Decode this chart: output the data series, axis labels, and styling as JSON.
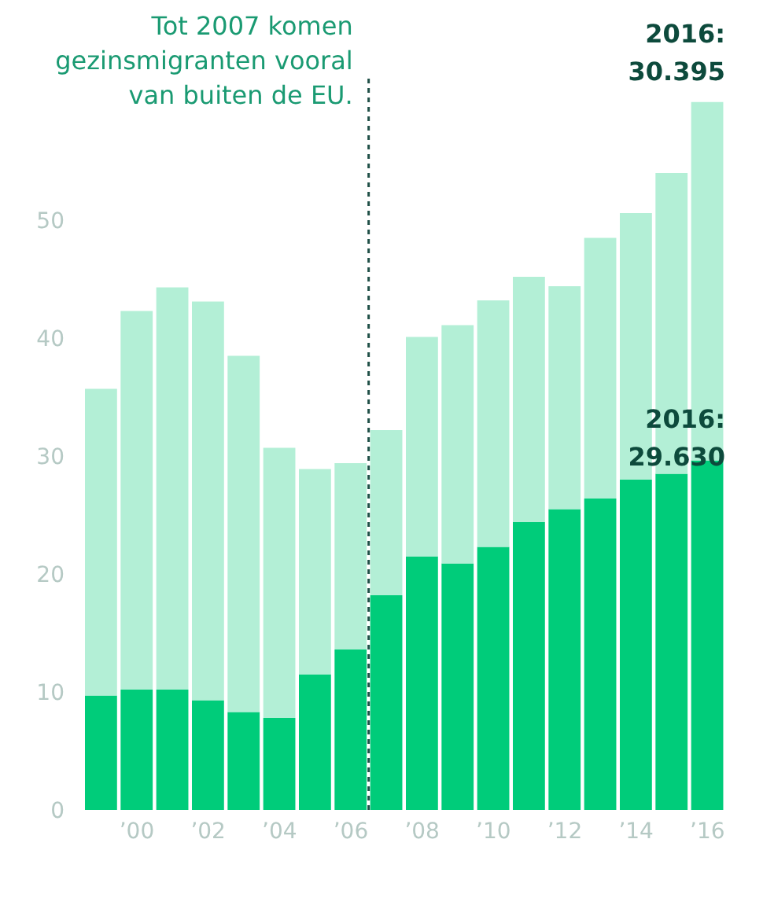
{
  "chart_data": {
    "type": "bar",
    "stacked": true,
    "x": [
      1999,
      2000,
      2001,
      2002,
      2003,
      2004,
      2005,
      2006,
      2007,
      2008,
      2009,
      2010,
      2011,
      2012,
      2013,
      2014,
      2015,
      2016
    ],
    "series": [
      {
        "color": "#00cc7a",
        "values": [
          9.7,
          10.2,
          10.2,
          9.3,
          8.3,
          7.8,
          11.5,
          13.6,
          18.2,
          21.5,
          20.9,
          22.3,
          24.4,
          25.5,
          26.4,
          28.0,
          28.5,
          29.63
        ]
      },
      {
        "color": "#b3efd6",
        "values": [
          26.0,
          32.1,
          34.1,
          33.8,
          30.2,
          22.9,
          17.4,
          15.8,
          14.0,
          18.6,
          20.2,
          20.9,
          20.8,
          18.9,
          22.1,
          22.6,
          25.5,
          30.395
        ]
      }
    ],
    "xlim": [
      1998.5,
      2016.5
    ],
    "xticks": [
      {
        "value": 2000,
        "label": "’00"
      },
      {
        "value": 2002,
        "label": "’02"
      },
      {
        "value": 2004,
        "label": "’04"
      },
      {
        "value": 2006,
        "label": "’06"
      },
      {
        "value": 2008,
        "label": "’08"
      },
      {
        "value": 2010,
        "label": "’10"
      },
      {
        "value": 2012,
        "label": "’12"
      },
      {
        "value": 2014,
        "label": "’14"
      },
      {
        "value": 2016,
        "label": "’16"
      }
    ],
    "ylim": [
      0,
      62
    ],
    "yticks": [
      0,
      10,
      20,
      30,
      40,
      50
    ],
    "grid": false,
    "legend": false,
    "ref_lines": [
      {
        "axis": "x",
        "value": 2006.5,
        "label": "Tot 2007 komen gezinsmigranten vooral van buiten de EU.",
        "color": "#1f4f47",
        "line_style": "dashed"
      }
    ],
    "annotations": [
      {
        "text": "2016: 30.395",
        "x": 2016,
        "y": 60.025
      },
      {
        "text": "2016: 29.630",
        "x": 2016,
        "y": 29.63
      }
    ]
  }
}
